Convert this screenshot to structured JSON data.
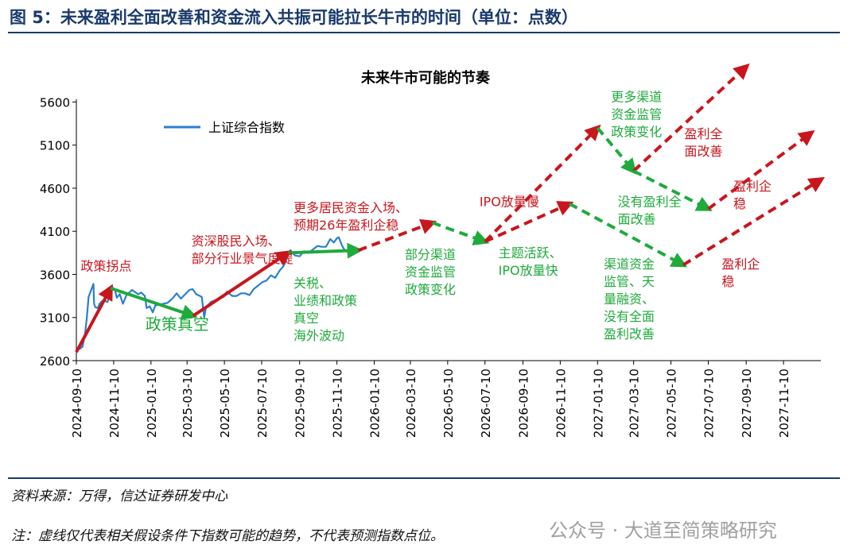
{
  "figure": {
    "title": "图 5：未来盈利全面改善和资金流入共振可能拉长牛市的时间（单位：点数）",
    "source": "资料来源：万得，信达证券研发中心",
    "note": "注：虚线仅代表相关假设条件下指数可能的趋势，不代表预测指数点位。",
    "watermark": "公众号 · 大道至简策略研究"
  },
  "colors": {
    "series": "#2a7fd0",
    "red": "#c8161d",
    "green": "#1faa3c",
    "frame": "#1a3a6c"
  },
  "chart_data": {
    "type": "line",
    "title": "未来牛市可能的节奏",
    "xlabel": "",
    "ylabel": "",
    "ylim": [
      2600,
      6000
    ],
    "xlim": [
      "2024-09-10",
      "2028-01-10"
    ],
    "yticks": [
      2600,
      3100,
      3600,
      4100,
      4600,
      5100,
      5600
    ],
    "xticks": [
      "2024-09-10",
      "2024-11-10",
      "2025-01-10",
      "2025-03-10",
      "2025-05-10",
      "2025-07-10",
      "2025-09-10",
      "2025-11-10",
      "2026-01-10",
      "2026-03-10",
      "2026-05-10",
      "2026-07-10",
      "2026-09-10",
      "2026-11-10",
      "2027-01-10",
      "2027-03-10",
      "2027-05-10",
      "2027-07-10",
      "2027-09-10",
      "2027-11-10"
    ],
    "legend": {
      "position": "top-left",
      "entries": [
        "上证综合指数"
      ]
    },
    "series": [
      {
        "name": "上证综合指数",
        "points": [
          [
            "2024-09-10",
            2720
          ],
          [
            "2024-09-16",
            2740
          ],
          [
            "2024-09-20",
            2760
          ],
          [
            "2024-09-24",
            2900
          ],
          [
            "2024-09-27",
            3090
          ],
          [
            "2024-09-30",
            3340
          ],
          [
            "2024-10-08",
            3490
          ],
          [
            "2024-10-09",
            3260
          ],
          [
            "2024-10-11",
            3220
          ],
          [
            "2024-10-15",
            3210
          ],
          [
            "2024-10-18",
            3260
          ],
          [
            "2024-10-22",
            3290
          ],
          [
            "2024-10-25",
            3300
          ],
          [
            "2024-10-31",
            3280
          ],
          [
            "2024-11-05",
            3390
          ],
          [
            "2024-11-08",
            3450
          ],
          [
            "2024-11-12",
            3420
          ],
          [
            "2024-11-15",
            3330
          ],
          [
            "2024-11-20",
            3370
          ],
          [
            "2024-11-25",
            3260
          ],
          [
            "2024-12-01",
            3360
          ],
          [
            "2024-12-10",
            3420
          ],
          [
            "2024-12-16",
            3390
          ],
          [
            "2024-12-20",
            3370
          ],
          [
            "2024-12-25",
            3390
          ],
          [
            "2024-12-31",
            3350
          ],
          [
            "2025-01-03",
            3210
          ],
          [
            "2025-01-08",
            3230
          ],
          [
            "2025-01-13",
            3160
          ],
          [
            "2025-01-17",
            3240
          ],
          [
            "2025-01-24",
            3250
          ],
          [
            "2025-02-06",
            3270
          ],
          [
            "2025-02-14",
            3320
          ],
          [
            "2025-02-21",
            3380
          ],
          [
            "2025-02-28",
            3320
          ],
          [
            "2025-03-07",
            3370
          ],
          [
            "2025-03-14",
            3420
          ],
          [
            "2025-03-19",
            3430
          ],
          [
            "2025-03-25",
            3370
          ],
          [
            "2025-04-03",
            3340
          ],
          [
            "2025-04-07",
            3100
          ],
          [
            "2025-04-10",
            3220
          ],
          [
            "2025-04-18",
            3280
          ],
          [
            "2025-04-25",
            3300
          ],
          [
            "2025-05-09",
            3340
          ],
          [
            "2025-05-14",
            3400
          ],
          [
            "2025-05-23",
            3350
          ],
          [
            "2025-05-30",
            3350
          ],
          [
            "2025-06-06",
            3380
          ],
          [
            "2025-06-13",
            3380
          ],
          [
            "2025-06-20",
            3360
          ],
          [
            "2025-06-27",
            3430
          ],
          [
            "2025-07-04",
            3470
          ],
          [
            "2025-07-11",
            3510
          ],
          [
            "2025-07-18",
            3530
          ],
          [
            "2025-07-25",
            3590
          ],
          [
            "2025-08-01",
            3560
          ],
          [
            "2025-08-08",
            3640
          ],
          [
            "2025-08-15",
            3700
          ],
          [
            "2025-08-22",
            3820
          ],
          [
            "2025-08-26",
            3880
          ],
          [
            "2025-09-02",
            3820
          ],
          [
            "2025-09-10",
            3810
          ],
          [
            "2025-09-17",
            3870
          ],
          [
            "2025-09-24",
            3850
          ],
          [
            "2025-09-30",
            3880
          ],
          [
            "2025-10-09",
            3930
          ],
          [
            "2025-10-16",
            3920
          ],
          [
            "2025-10-23",
            3920
          ],
          [
            "2025-10-30",
            4010
          ],
          [
            "2025-11-05",
            3970
          ],
          [
            "2025-11-10",
            4020
          ],
          [
            "2025-11-13",
            4030
          ],
          [
            "2025-11-18",
            3940
          ],
          [
            "2025-11-21",
            3900
          ],
          [
            "2025-11-26",
            3860
          ]
        ]
      }
    ],
    "trend_arrows": [
      {
        "style": "solid",
        "color": "red",
        "from": [
          "2024-09-10",
          2700
        ],
        "to": [
          "2024-11-05",
          3440
        ]
      },
      {
        "style": "solid",
        "color": "green",
        "from": [
          "2024-11-05",
          3440
        ],
        "to": [
          "2025-03-20",
          3120
        ]
      },
      {
        "style": "solid",
        "color": "red",
        "from": [
          "2025-03-20",
          3120
        ],
        "to": [
          "2025-08-22",
          3850
        ]
      },
      {
        "style": "solid",
        "color": "green",
        "from": [
          "2025-08-22",
          3850
        ],
        "to": [
          "2025-12-15",
          3880
        ]
      },
      {
        "style": "dashed",
        "color": "red",
        "from": [
          "2025-12-15",
          3880
        ],
        "to": [
          "2026-04-15",
          4200
        ]
      },
      {
        "style": "dashed",
        "color": "green",
        "from": [
          "2026-04-15",
          4200
        ],
        "to": [
          "2026-07-10",
          3980
        ]
      },
      {
        "style": "dashed",
        "color": "red",
        "from": [
          "2026-07-10",
          3980
        ],
        "to": [
          "2027-01-10",
          5300
        ]
      },
      {
        "style": "dashed",
        "color": "green",
        "from": [
          "2027-01-10",
          5300
        ],
        "to": [
          "2027-03-10",
          4800
        ]
      },
      {
        "style": "dashed",
        "color": "red",
        "from": [
          "2027-03-10",
          4800
        ],
        "to": [
          "2027-09-10",
          6010
        ]
      },
      {
        "style": "dashed",
        "color": "red",
        "from": [
          "2026-07-10",
          3980
        ],
        "to": [
          "2026-11-25",
          4420
        ]
      },
      {
        "style": "dashed",
        "color": "green",
        "from": [
          "2026-11-25",
          4420
        ],
        "to": [
          "2027-05-30",
          3710
        ]
      },
      {
        "style": "dashed",
        "color": "red",
        "from": [
          "2027-05-30",
          3710
        ],
        "to": [
          "2028-01-10",
          4700
        ]
      },
      {
        "style": "dashed",
        "color": "green",
        "from": [
          "2027-03-10",
          4800
        ],
        "to": [
          "2027-07-10",
          4360
        ]
      },
      {
        "style": "dashed",
        "color": "red",
        "from": [
          "2027-07-10",
          4360
        ],
        "to": [
          "2027-12-25",
          5240
        ]
      }
    ],
    "annotations": [
      {
        "lines": [
          "政策拐点"
        ],
        "color": "red",
        "at": [
          "2024-09-17",
          3645
        ]
      },
      {
        "lines": [
          "政策真空"
        ],
        "color": "green",
        "large": true,
        "at": [
          "2025-01-01",
          2960
        ]
      },
      {
        "lines": [
          "资深股民入场、",
          "部分行业景气度提"
        ],
        "color": "red",
        "at": [
          "2025-03-17",
          3935
        ]
      },
      {
        "lines": [
          "关税、",
          "业绩和政策",
          "真空",
          "海外波动"
        ],
        "color": "green",
        "at": [
          "2025-08-31",
          3450
        ]
      },
      {
        "lines": [
          "更多居民资金入场、",
          "预期26年盈利企稳"
        ],
        "color": "red",
        "at": [
          "2025-08-31",
          4325
        ]
      },
      {
        "lines": [
          "部分渠道",
          "资金监管",
          "政策变化"
        ],
        "color": "green",
        "at": [
          "2026-03-01",
          3780
        ]
      },
      {
        "lines": [
          "IPO放量慢"
        ],
        "color": "red",
        "at": [
          "2026-07-01",
          4390
        ]
      },
      {
        "lines": [
          "主题活跃、",
          "IPO放量快"
        ],
        "color": "green",
        "at": [
          "2026-08-01",
          3800
        ]
      },
      {
        "lines": [
          "更多渠道",
          "资金监管",
          "政策变化"
        ],
        "color": "green",
        "at": [
          "2027-02-01",
          5610
        ]
      },
      {
        "lines": [
          "盈利全",
          "面改善"
        ],
        "color": "red",
        "at": [
          "2027-06-01",
          5180
        ]
      },
      {
        "lines": [
          "没有盈利全",
          "面改善"
        ],
        "color": "green",
        "at": [
          "2027-02-12",
          4390
        ]
      },
      {
        "lines": [
          "渠道资金",
          "监管、天",
          "量融资、",
          "没有全面",
          "盈利改善"
        ],
        "color": "green",
        "at": [
          "2027-01-20",
          3670
        ]
      },
      {
        "lines": [
          "盈利企",
          "稳"
        ],
        "color": "red",
        "at": [
          "2027-08-20",
          4570
        ]
      },
      {
        "lines": [
          "盈利企",
          "稳"
        ],
        "color": "red",
        "at": [
          "2027-08-01",
          3670
        ]
      }
    ]
  }
}
